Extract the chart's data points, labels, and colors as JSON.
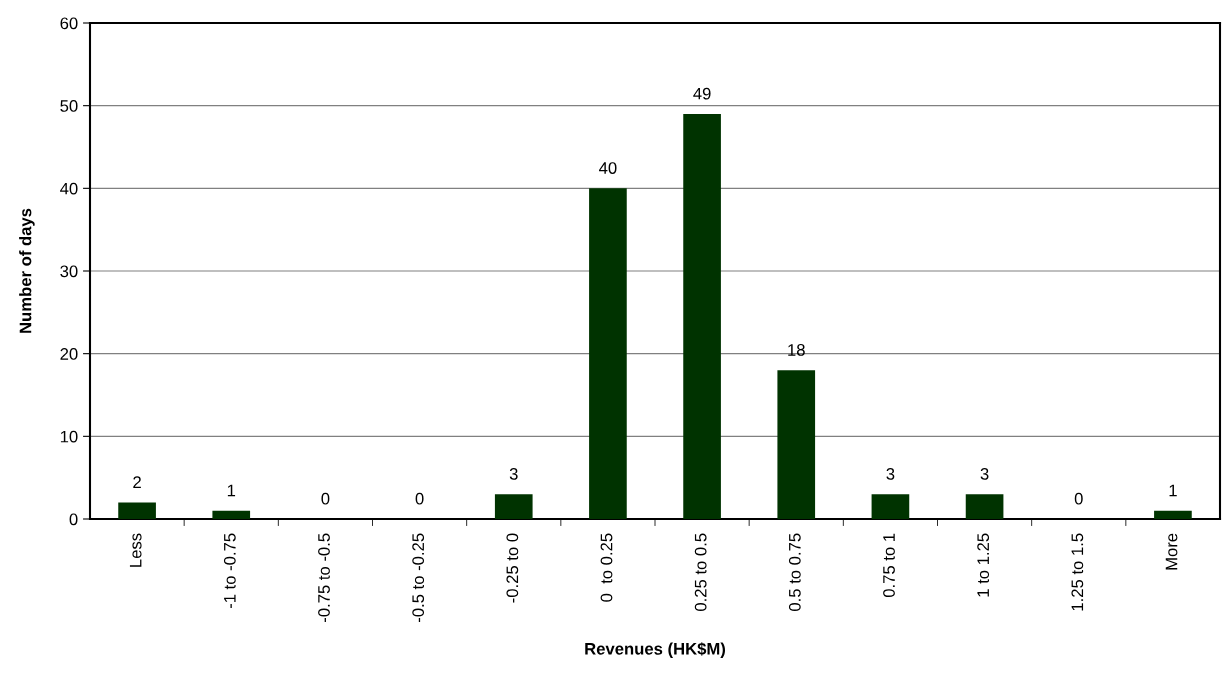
{
  "chart_data": {
    "type": "bar",
    "xlabel": "Revenues (HK$M)",
    "ylabel": "Number of days",
    "categories": [
      "Less",
      "-1 to -0.75",
      "-0.75 to -0.5",
      "-0.5 to -0.25",
      "-0.25 to 0",
      "0  to 0.25",
      "0.25 to 0.5",
      "0.5 to 0.75",
      "0.75 to 1",
      "1 to 1.25",
      "1.25 to 1.5",
      "More"
    ],
    "values": [
      2,
      1,
      0,
      0,
      3,
      40,
      49,
      18,
      3,
      3,
      0,
      1
    ],
    "color": "#003300",
    "ylim": [
      0,
      60
    ],
    "yticks": [
      0,
      10,
      20,
      30,
      40,
      50,
      60
    ],
    "grid": "y",
    "data_labels": true,
    "legend": false
  }
}
